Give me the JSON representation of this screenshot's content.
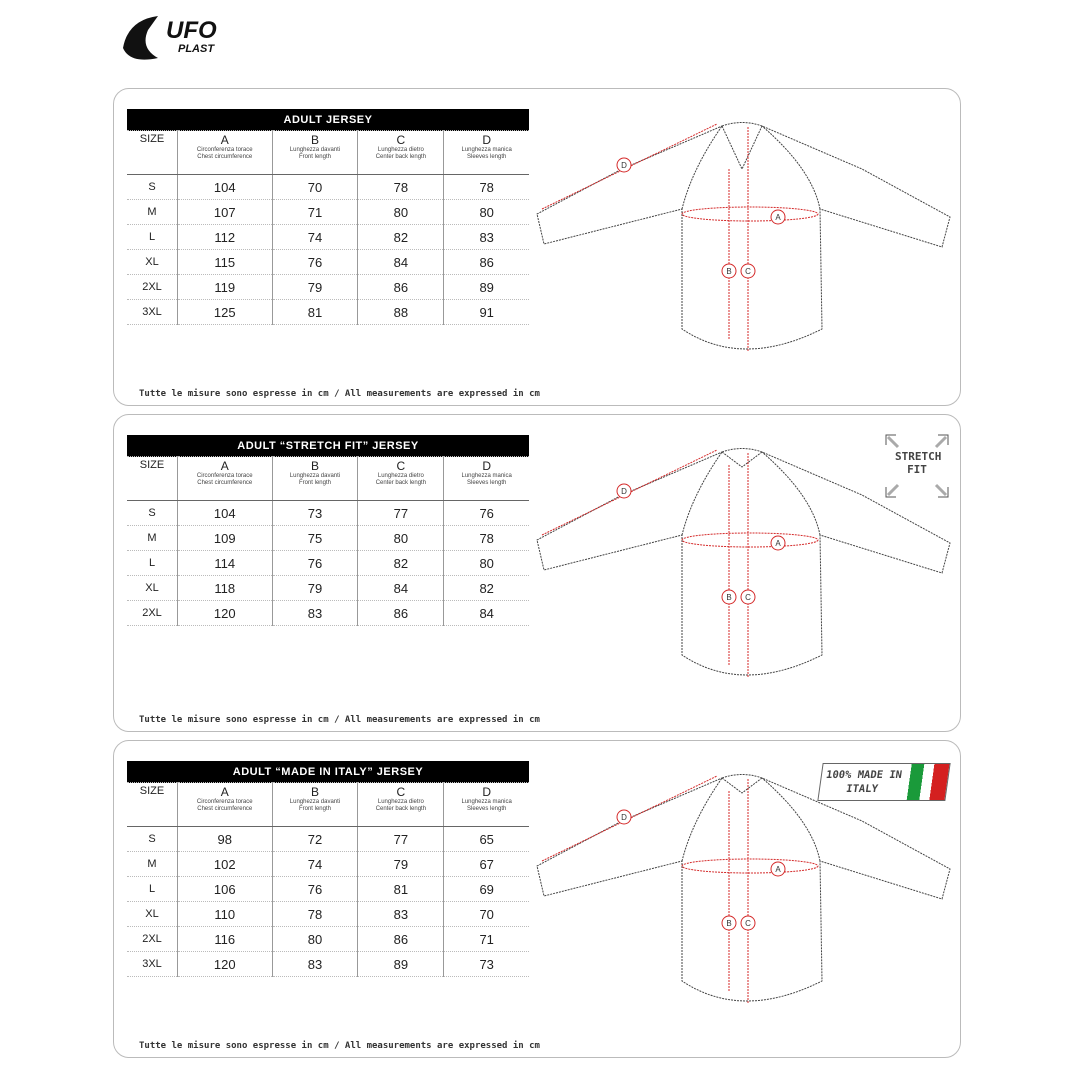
{
  "brand": {
    "logo_text": "UFO PLAST"
  },
  "columns": [
    {
      "letter": "SIZE",
      "it": "",
      "en": ""
    },
    {
      "letter": "A",
      "it": "Circonferenza torace",
      "en": "Chest circumference"
    },
    {
      "letter": "B",
      "it": "Lunghezza davanti",
      "en": "Front length"
    },
    {
      "letter": "C",
      "it": "Lunghezza dietro",
      "en": "Center back length"
    },
    {
      "letter": "D",
      "it": "Lunghezza manica",
      "en": "Sleeves length"
    }
  ],
  "note": "Tutte le misure sono espresse in cm / All measurements are expressed in cm",
  "marker_labels": [
    "A",
    "B",
    "C",
    "D"
  ],
  "accent": "#d42a2a",
  "panels": [
    {
      "title": "ADULT JERSEY",
      "badge": null,
      "rows": [
        [
          "S",
          "104",
          "70",
          "78",
          "78"
        ],
        [
          "M",
          "107",
          "71",
          "80",
          "80"
        ],
        [
          "L",
          "112",
          "74",
          "82",
          "83"
        ],
        [
          "XL",
          "115",
          "76",
          "84",
          "86"
        ],
        [
          "2XL",
          "119",
          "79",
          "86",
          "89"
        ],
        [
          "3XL",
          "125",
          "81",
          "88",
          "91"
        ]
      ]
    },
    {
      "title": "ADULT “STRETCH FIT” JERSEY",
      "badge": {
        "type": "stretch",
        "text": "STRETCH FIT"
      },
      "rows": [
        [
          "S",
          "104",
          "73",
          "77",
          "76"
        ],
        [
          "M",
          "109",
          "75",
          "80",
          "78"
        ],
        [
          "L",
          "114",
          "76",
          "82",
          "80"
        ],
        [
          "XL",
          "118",
          "79",
          "84",
          "82"
        ],
        [
          "2XL",
          "120",
          "83",
          "86",
          "84"
        ]
      ]
    },
    {
      "title": "ADULT “MADE IN ITALY” JERSEY",
      "badge": {
        "type": "italy",
        "text": "100% MADE IN ITALY",
        "colors": [
          "#1a9a3a",
          "#ffffff",
          "#d42020"
        ]
      },
      "rows": [
        [
          "S",
          "98",
          "72",
          "77",
          "65"
        ],
        [
          "M",
          "102",
          "74",
          "79",
          "67"
        ],
        [
          "L",
          "106",
          "76",
          "81",
          "69"
        ],
        [
          "XL",
          "110",
          "78",
          "83",
          "70"
        ],
        [
          "2XL",
          "116",
          "80",
          "86",
          "71"
        ],
        [
          "3XL",
          "120",
          "83",
          "89",
          "73"
        ]
      ]
    }
  ]
}
